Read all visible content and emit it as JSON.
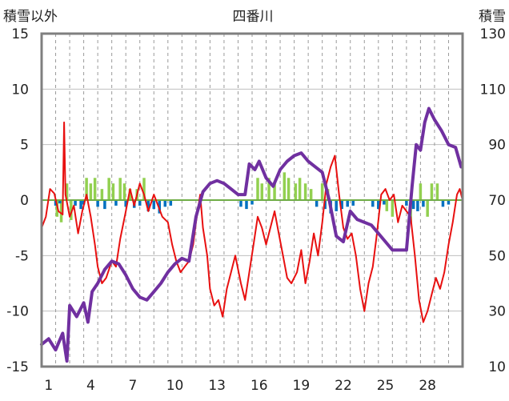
{
  "chart_data": {
    "type": "line",
    "title": "四番川",
    "ylabel_left": "積雪以外",
    "ylabel_right": "積雪",
    "x": {
      "range": [
        0,
        30
      ],
      "ticks": [
        1,
        4,
        7,
        10,
        13,
        16,
        19,
        22,
        25,
        28
      ],
      "tick_labels": [
        "1",
        "4",
        "7",
        "10",
        "13",
        "16",
        "19",
        "22",
        "25",
        "28"
      ]
    },
    "y_left": {
      "range": [
        -15,
        15
      ],
      "ticks": [
        -15,
        -10,
        -5,
        0,
        5,
        10,
        15
      ],
      "tick_labels": [
        "-15",
        "-10",
        "-5",
        "0",
        "5",
        "10",
        "15"
      ]
    },
    "y_right": {
      "range": [
        10,
        130
      ],
      "ticks": [
        10,
        30,
        50,
        70,
        90,
        110,
        130
      ],
      "tick_labels": [
        "10",
        "30",
        "50",
        "70",
        "90",
        "110",
        "130"
      ]
    },
    "grid": {
      "horizontal": true,
      "vertical_dashed": true
    },
    "colors": {
      "temperature": "#e81010",
      "snow_depth": "#7030a0",
      "green_bars": "#92d050",
      "blue_bars": "#0070c0",
      "zero_line": "#70ad47",
      "frame": "#7f7f7f"
    },
    "series": [
      {
        "axis": "left",
        "style": "line",
        "color": "#e81010",
        "points": [
          [
            0,
            -2.5
          ],
          [
            0.3,
            -1.5
          ],
          [
            0.6,
            1.0
          ],
          [
            0.9,
            0.6
          ],
          [
            1.2,
            -1.0
          ],
          [
            1.5,
            -1.3
          ],
          [
            1.6,
            7.0
          ],
          [
            1.7,
            0.5
          ],
          [
            2.0,
            -1.5
          ],
          [
            2.3,
            -0.5
          ],
          [
            2.6,
            -3.0
          ],
          [
            2.9,
            -1.0
          ],
          [
            3.2,
            0.5
          ],
          [
            3.5,
            -1.5
          ],
          [
            3.8,
            -4.0
          ],
          [
            4.0,
            -6.0
          ],
          [
            4.3,
            -7.5
          ],
          [
            4.6,
            -7.0
          ],
          [
            5.0,
            -5.5
          ],
          [
            5.3,
            -6.0
          ],
          [
            5.6,
            -3.5
          ],
          [
            6.0,
            -1.0
          ],
          [
            6.3,
            1.0
          ],
          [
            6.6,
            -0.5
          ],
          [
            7.0,
            1.5
          ],
          [
            7.3,
            0.5
          ],
          [
            7.6,
            -1.0
          ],
          [
            8.0,
            0.5
          ],
          [
            8.3,
            -0.5
          ],
          [
            8.6,
            -1.5
          ],
          [
            9.0,
            -2.0
          ],
          [
            9.3,
            -4.0
          ],
          [
            9.6,
            -5.5
          ],
          [
            9.9,
            -6.5
          ],
          [
            10.2,
            -6.0
          ],
          [
            10.5,
            -5.5
          ],
          [
            10.8,
            -4.0
          ],
          [
            11.0,
            -2.0
          ],
          [
            11.3,
            0.5
          ],
          [
            11.5,
            -2.5
          ],
          [
            11.8,
            -5.0
          ],
          [
            12.0,
            -8.0
          ],
          [
            12.3,
            -9.5
          ],
          [
            12.6,
            -9.0
          ],
          [
            12.9,
            -10.5
          ],
          [
            13.2,
            -8.0
          ],
          [
            13.5,
            -6.5
          ],
          [
            13.8,
            -5.0
          ],
          [
            14.2,
            -7.5
          ],
          [
            14.5,
            -9.0
          ],
          [
            14.8,
            -6.5
          ],
          [
            15.1,
            -4.0
          ],
          [
            15.4,
            -1.5
          ],
          [
            15.7,
            -2.5
          ],
          [
            16.0,
            -4.0
          ],
          [
            16.3,
            -2.5
          ],
          [
            16.6,
            -1.0
          ],
          [
            16.9,
            -3.0
          ],
          [
            17.2,
            -5.0
          ],
          [
            17.5,
            -7.0
          ],
          [
            17.8,
            -7.5
          ],
          [
            18.2,
            -6.5
          ],
          [
            18.5,
            -4.5
          ],
          [
            18.8,
            -7.5
          ],
          [
            19.1,
            -5.5
          ],
          [
            19.4,
            -3.0
          ],
          [
            19.7,
            -5.0
          ],
          [
            20.0,
            -2.0
          ],
          [
            20.3,
            1.5
          ],
          [
            20.6,
            3.0
          ],
          [
            20.9,
            4.0
          ],
          [
            21.2,
            0.5
          ],
          [
            21.5,
            -2.5
          ],
          [
            21.8,
            -3.5
          ],
          [
            22.1,
            -3.0
          ],
          [
            22.4,
            -5.0
          ],
          [
            22.7,
            -8.0
          ],
          [
            23.0,
            -10.0
          ],
          [
            23.3,
            -7.5
          ],
          [
            23.6,
            -6.0
          ],
          [
            23.9,
            -3.0
          ],
          [
            24.2,
            0.5
          ],
          [
            24.5,
            1.0
          ],
          [
            24.8,
            0.0
          ],
          [
            25.1,
            0.5
          ],
          [
            25.4,
            -2.0
          ],
          [
            25.7,
            -0.5
          ],
          [
            26.0,
            -1.0
          ],
          [
            26.3,
            -1.5
          ],
          [
            26.6,
            -5.0
          ],
          [
            26.9,
            -9.0
          ],
          [
            27.2,
            -11.0
          ],
          [
            27.5,
            -10.0
          ],
          [
            27.8,
            -8.5
          ],
          [
            28.1,
            -7.0
          ],
          [
            28.4,
            -8.0
          ],
          [
            28.7,
            -6.5
          ],
          [
            29.0,
            -4.0
          ],
          [
            29.3,
            -2.0
          ],
          [
            29.6,
            0.5
          ],
          [
            29.8,
            1.0
          ],
          [
            30.0,
            0.0
          ]
        ]
      },
      {
        "axis": "right",
        "style": "thick-line",
        "color": "#7030a0",
        "points": [
          [
            0,
            18
          ],
          [
            0.5,
            20
          ],
          [
            1.0,
            16
          ],
          [
            1.5,
            22
          ],
          [
            1.8,
            12
          ],
          [
            2.0,
            32
          ],
          [
            2.5,
            28
          ],
          [
            3.0,
            33
          ],
          [
            3.3,
            26
          ],
          [
            3.6,
            37
          ],
          [
            4.0,
            40
          ],
          [
            4.5,
            45
          ],
          [
            5.0,
            48
          ],
          [
            5.5,
            47
          ],
          [
            6.0,
            43
          ],
          [
            6.5,
            38
          ],
          [
            7.0,
            35
          ],
          [
            7.5,
            34
          ],
          [
            8.0,
            37
          ],
          [
            8.5,
            40
          ],
          [
            9.0,
            44
          ],
          [
            9.5,
            47
          ],
          [
            10.0,
            49
          ],
          [
            10.5,
            48
          ],
          [
            11.0,
            64
          ],
          [
            11.5,
            73
          ],
          [
            12.0,
            76
          ],
          [
            12.5,
            77
          ],
          [
            13.0,
            76
          ],
          [
            13.5,
            74
          ],
          [
            14.0,
            72
          ],
          [
            14.5,
            72
          ],
          [
            14.8,
            83
          ],
          [
            15.2,
            81
          ],
          [
            15.5,
            84
          ],
          [
            16.0,
            78
          ],
          [
            16.5,
            75
          ],
          [
            17.0,
            81
          ],
          [
            17.5,
            84
          ],
          [
            18.0,
            86
          ],
          [
            18.5,
            87
          ],
          [
            19.0,
            84
          ],
          [
            19.5,
            82
          ],
          [
            20.0,
            80
          ],
          [
            20.5,
            70
          ],
          [
            21.0,
            57
          ],
          [
            21.5,
            55
          ],
          [
            22.0,
            66
          ],
          [
            22.5,
            63
          ],
          [
            23.0,
            62
          ],
          [
            23.5,
            61
          ],
          [
            24.0,
            58
          ],
          [
            24.5,
            55
          ],
          [
            25.0,
            52
          ],
          [
            25.5,
            52
          ],
          [
            26.0,
            52
          ],
          [
            26.4,
            75
          ],
          [
            26.7,
            90
          ],
          [
            27.0,
            88
          ],
          [
            27.3,
            98
          ],
          [
            27.6,
            103
          ],
          [
            28.0,
            99
          ],
          [
            28.5,
            95
          ],
          [
            29.0,
            90
          ],
          [
            29.5,
            89
          ],
          [
            29.9,
            82
          ]
        ]
      },
      {
        "axis": "left",
        "style": "bars",
        "color": "#92d050",
        "points": [
          [
            1.1,
            -1.5
          ],
          [
            1.4,
            -2.0
          ],
          [
            1.8,
            1.5
          ],
          [
            2.1,
            -1.8
          ],
          [
            3.2,
            2.0
          ],
          [
            3.5,
            1.5
          ],
          [
            3.8,
            2.0
          ],
          [
            4.3,
            1.0
          ],
          [
            4.8,
            2.0
          ],
          [
            5.1,
            1.5
          ],
          [
            5.6,
            2.0
          ],
          [
            5.9,
            1.5
          ],
          [
            6.3,
            1.0
          ],
          [
            6.8,
            1.0
          ],
          [
            7.3,
            2.0
          ],
          [
            15.4,
            2.0
          ],
          [
            15.7,
            1.5
          ],
          [
            16.2,
            2.0
          ],
          [
            16.6,
            1.5
          ],
          [
            17.3,
            2.5
          ],
          [
            17.6,
            2.0
          ],
          [
            18.1,
            1.5
          ],
          [
            18.4,
            2.0
          ],
          [
            18.8,
            1.5
          ],
          [
            19.2,
            1.0
          ],
          [
            20.0,
            1.5
          ],
          [
            20.4,
            1.0
          ],
          [
            24.6,
            -1.0
          ],
          [
            25.0,
            -1.5
          ],
          [
            26.3,
            -2.0
          ],
          [
            27.0,
            1.5
          ],
          [
            27.5,
            -1.5
          ],
          [
            27.8,
            1.5
          ],
          [
            28.2,
            1.5
          ]
        ]
      },
      {
        "axis": "left",
        "style": "bars",
        "color": "#0070c0",
        "points": [
          [
            1.0,
            -0.5
          ],
          [
            1.3,
            -0.3
          ],
          [
            2.4,
            -0.5
          ],
          [
            2.8,
            -0.8
          ],
          [
            3.0,
            -0.4
          ],
          [
            4.0,
            -0.6
          ],
          [
            4.5,
            -0.8
          ],
          [
            5.3,
            -0.5
          ],
          [
            6.0,
            -0.6
          ],
          [
            6.6,
            -0.7
          ],
          [
            7.0,
            -0.5
          ],
          [
            7.6,
            -1.0
          ],
          [
            8.0,
            -0.8
          ],
          [
            8.4,
            -1.2
          ],
          [
            8.8,
            -0.6
          ],
          [
            9.2,
            -0.5
          ],
          [
            14.2,
            -0.6
          ],
          [
            14.6,
            -0.8
          ],
          [
            15.0,
            -0.4
          ],
          [
            19.6,
            -0.6
          ],
          [
            20.2,
            -0.8
          ],
          [
            20.6,
            -1.2
          ],
          [
            21.0,
            -1.0
          ],
          [
            21.4,
            -0.8
          ],
          [
            21.8,
            -0.6
          ],
          [
            22.2,
            -0.5
          ],
          [
            23.6,
            -0.6
          ],
          [
            24.0,
            -0.8
          ],
          [
            24.4,
            -0.4
          ],
          [
            26.0,
            -0.5
          ],
          [
            26.5,
            -0.8
          ],
          [
            26.8,
            -1.0
          ],
          [
            27.2,
            -0.6
          ],
          [
            28.6,
            -0.6
          ],
          [
            29.0,
            -0.4
          ]
        ]
      }
    ]
  }
}
